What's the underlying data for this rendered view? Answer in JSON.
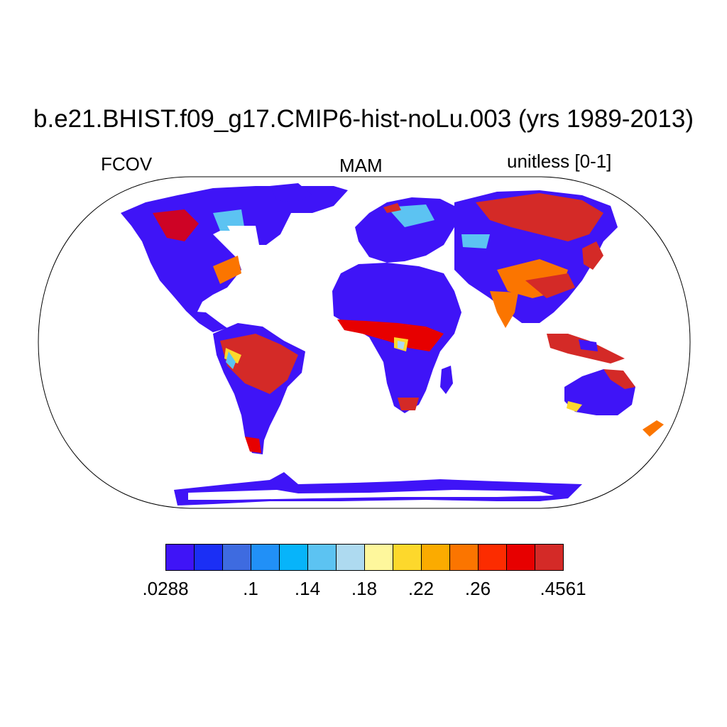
{
  "title": "b.e21.BHIST.f09_g17.CMIP6-hist-noLu.003 (yrs 1989-2013)",
  "subtitle_left": "FCOV",
  "subtitle_center": "MAM",
  "subtitle_right": "unitless [0-1]",
  "colorbar": {
    "colors": [
      "#3f14f7",
      "#1b2ff5",
      "#3e6be0",
      "#2190f7",
      "#07b4fa",
      "#5cc3f2",
      "#aedaf0",
      "#fef79c",
      "#fdd82c",
      "#fbab00",
      "#fb7500",
      "#fc2c00",
      "#e70000",
      "#d42a27"
    ],
    "labels": [
      ".0288",
      ".1",
      ".14",
      ".18",
      ".22",
      ".26",
      ".4561"
    ],
    "label_boundaries": [
      0,
      3,
      5,
      7,
      9,
      11,
      14
    ]
  }
}
